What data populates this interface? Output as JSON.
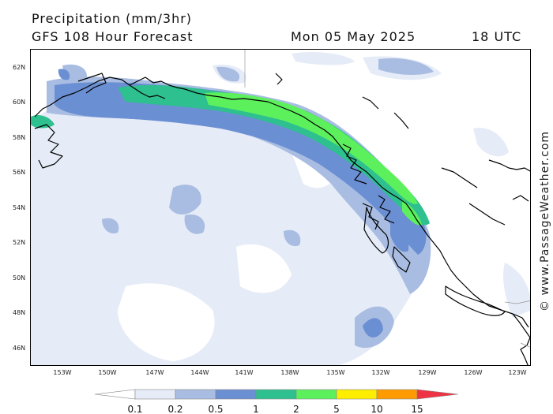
{
  "header": {
    "title": "Precipitation (mm/3hr)",
    "subtitle": "GFS 108 Hour Forecast",
    "date": "Mon 05 May 2025",
    "time": "18 UTC"
  },
  "map": {
    "lat_ticks": [
      "62N",
      "60N",
      "58N",
      "56N",
      "54N",
      "52N",
      "50N",
      "48N",
      "46N"
    ],
    "lon_ticks": [
      "153W",
      "150W",
      "147W",
      "144W",
      "141W",
      "138W",
      "135W",
      "132W",
      "129W",
      "126W",
      "123W"
    ],
    "watermark": "© www.PassageWeather.com"
  },
  "legend": {
    "labels": [
      "0.1",
      "0.2",
      "0.5",
      "1",
      "2",
      "5",
      "10",
      "15"
    ],
    "colors": [
      "#ffffff",
      "#e6ecf7",
      "#a9bde2",
      "#6b8fd3",
      "#2ec08f",
      "#5df05d",
      "#ffee00",
      "#ff9a00",
      "#ee3344"
    ]
  }
}
